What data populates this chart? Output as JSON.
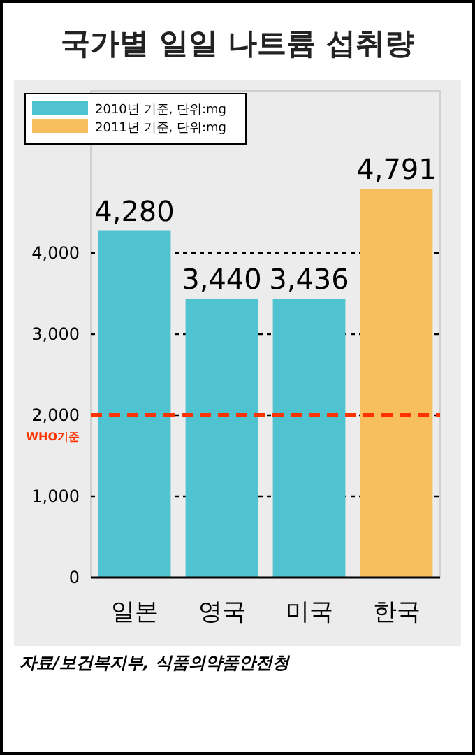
{
  "chart_data": {
    "type": "bar",
    "title": "국가별 일일 나트륨 섭취량",
    "categories": [
      "일본",
      "영국",
      "미국",
      "한국"
    ],
    "series": [
      {
        "name": "2010년 기준, 단위:mg",
        "color": "#4fc3d0",
        "values": [
          4280,
          3440,
          3436,
          null
        ],
        "value_labels": [
          "4,280",
          "3,440",
          "3,436",
          null
        ]
      },
      {
        "name": "2011년 기준, 단위:mg",
        "color": "#f7bf5e",
        "values": [
          null,
          null,
          null,
          4791
        ],
        "value_labels": [
          null,
          null,
          null,
          "4,791"
        ]
      }
    ],
    "stacked": true,
    "ylim": [
      0,
      6000
    ],
    "yticks": [
      {
        "value": 0,
        "label": "0"
      },
      {
        "value": 1000,
        "label": "1,000"
      },
      {
        "value": 2000,
        "label": "2,000"
      },
      {
        "value": 3000,
        "label": "3,000"
      },
      {
        "value": 4000,
        "label": "4,000"
      }
    ],
    "grid": "y",
    "legend": "top left",
    "ref_lines": [
      {
        "axis": "y",
        "value": 2000,
        "label": "WHO기준",
        "color": "#ff3300",
        "line_style": "dashed"
      }
    ],
    "annotations": [
      "자료/보건복지부, 식품의약품안전청"
    ]
  }
}
